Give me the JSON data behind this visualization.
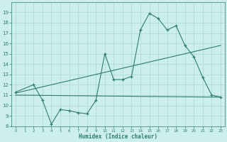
{
  "xlabel": "Humidex (Indice chaleur)",
  "x_main": [
    0,
    2,
    3,
    4,
    5,
    6,
    7,
    8,
    9,
    10,
    11,
    12,
    13,
    14,
    15,
    16,
    17,
    18,
    19,
    20,
    21,
    22,
    23
  ],
  "y_main": [
    11.3,
    12.0,
    10.5,
    8.2,
    9.6,
    9.5,
    9.3,
    9.2,
    10.5,
    15.0,
    12.5,
    12.5,
    12.8,
    17.3,
    18.9,
    18.4,
    17.3,
    17.7,
    15.8,
    14.7,
    12.7,
    11.0,
    10.8
  ],
  "trend1_x": [
    0,
    23
  ],
  "trend1_y": [
    11.2,
    15.8
  ],
  "trend2_x": [
    0,
    23
  ],
  "trend2_y": [
    11.0,
    10.8
  ],
  "ylim": [
    8,
    20
  ],
  "xlim": [
    -0.5,
    23.5
  ],
  "yticks": [
    8,
    9,
    10,
    11,
    12,
    13,
    14,
    15,
    16,
    17,
    18,
    19
  ],
  "xticks": [
    0,
    1,
    2,
    3,
    4,
    5,
    6,
    7,
    8,
    9,
    10,
    11,
    12,
    13,
    14,
    15,
    16,
    17,
    18,
    19,
    20,
    21,
    22,
    23
  ],
  "line_color": "#2e7d6e",
  "bg_color": "#cceeed",
  "grid_color": "#aad8d6"
}
